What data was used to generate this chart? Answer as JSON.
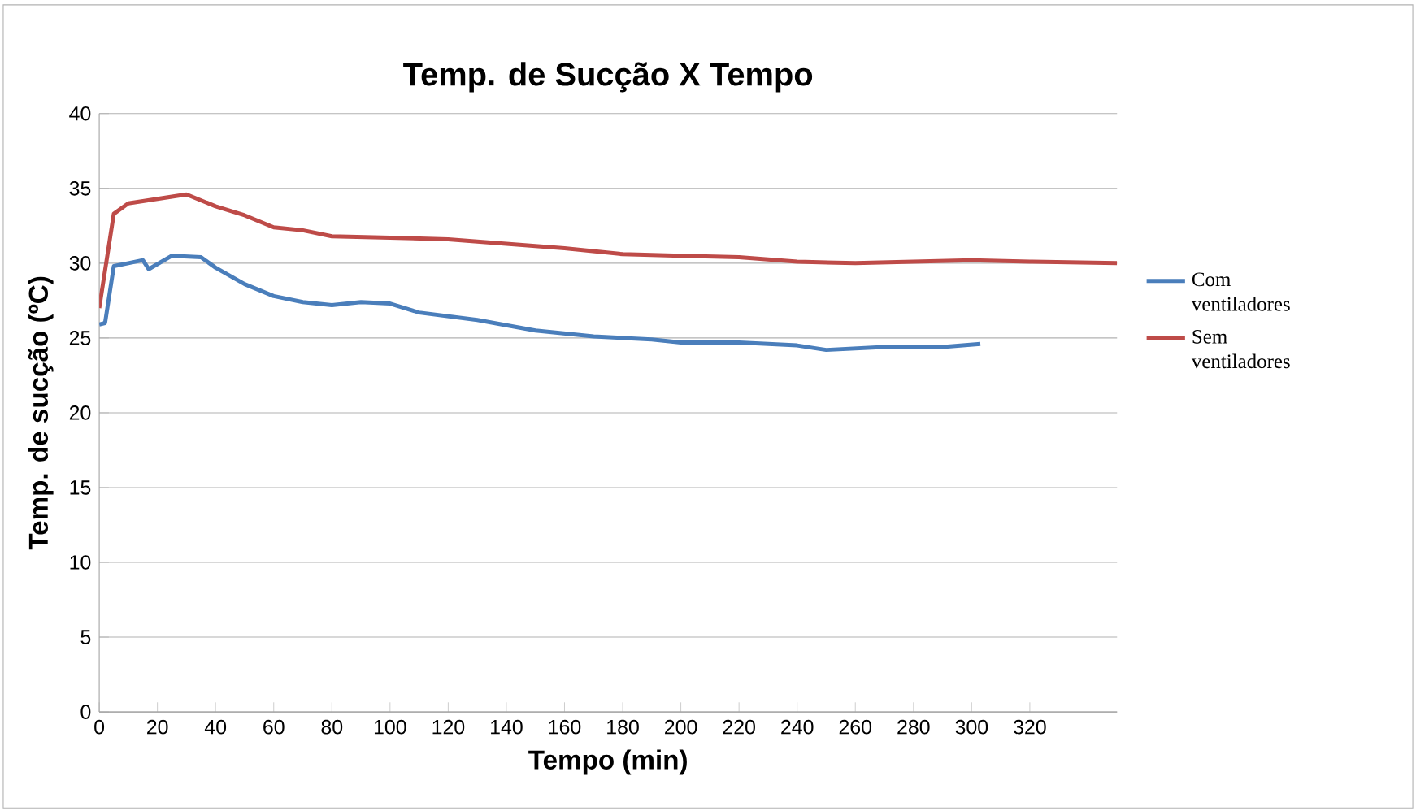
{
  "chart_data": {
    "type": "line",
    "title": "Temp. de Sucção X Tempo",
    "xlabel": "Tempo (min)",
    "ylabel": "Temp. de sucção (ºC)",
    "xlim": [
      0,
      350
    ],
    "xticks": [
      0,
      20,
      40,
      60,
      80,
      100,
      120,
      140,
      160,
      180,
      200,
      220,
      240,
      260,
      280,
      300,
      320
    ],
    "ylim": [
      0,
      40
    ],
    "yticks": [
      0,
      5,
      10,
      15,
      20,
      25,
      30,
      35,
      40
    ],
    "grid": "y",
    "legend": "right",
    "marker": "none",
    "line_style": "solid",
    "series": [
      {
        "name": "Com ventiladores",
        "color": "#4a7ebb",
        "x": [
          0,
          2,
          5,
          10,
          15,
          17,
          25,
          35,
          40,
          50,
          60,
          70,
          80,
          90,
          100,
          110,
          130,
          150,
          170,
          190,
          200,
          220,
          240,
          250,
          270,
          290,
          303
        ],
        "values": [
          25.9,
          26,
          29.8,
          30,
          30.2,
          29.6,
          30.5,
          30.4,
          29.7,
          28.6,
          27.8,
          27.4,
          27.2,
          27.4,
          27.3,
          26.7,
          26.2,
          25.5,
          25.1,
          24.9,
          24.7,
          24.7,
          24.5,
          24.2,
          24.4,
          24.4,
          24.6
        ]
      },
      {
        "name": "Sem ventiladores",
        "color": "#be4b48",
        "x": [
          0,
          5,
          10,
          20,
          30,
          40,
          50,
          60,
          70,
          80,
          100,
          120,
          140,
          160,
          180,
          200,
          220,
          240,
          260,
          280,
          300,
          320,
          350
        ],
        "values": [
          27,
          33.3,
          34,
          34.3,
          34.6,
          33.8,
          33.2,
          32.4,
          32.2,
          31.8,
          31.7,
          31.6,
          31.3,
          31,
          30.6,
          30.5,
          30.4,
          30.1,
          30,
          30.1,
          30.2,
          30.1,
          30
        ]
      }
    ]
  }
}
